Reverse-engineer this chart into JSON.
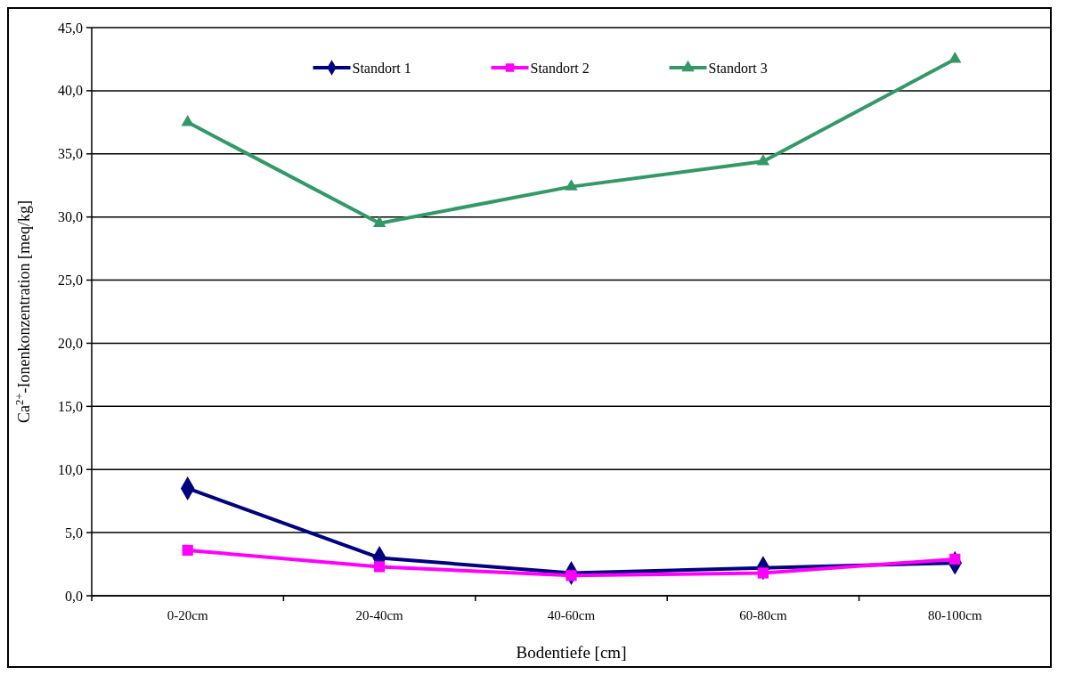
{
  "chart_data": {
    "type": "line",
    "xlabel": "Bodentiefe [cm]",
    "ylabel": "Ca$^{2+}$-Ionenkonzentration [meq/kg]",
    "categories": [
      "0-20cm",
      "20-40cm",
      "40-60cm",
      "60-80cm",
      "80-100cm"
    ],
    "series": [
      {
        "name": "Standort 1",
        "color": "#000080",
        "marker": "diamond",
        "values": [
          8.5,
          3.0,
          1.8,
          2.2,
          2.6
        ]
      },
      {
        "name": "Standort 2",
        "color": "#ff00ff",
        "marker": "square",
        "values": [
          3.6,
          2.3,
          1.6,
          1.8,
          2.9
        ]
      },
      {
        "name": "Standort 3",
        "color": "#339966",
        "marker": "triangle",
        "values": [
          37.5,
          29.5,
          32.4,
          34.4,
          42.5
        ]
      }
    ],
    "ylim": [
      0,
      45
    ],
    "yticks": [
      {
        "value": 0,
        "label": "0,0"
      },
      {
        "value": 5,
        "label": "5,0"
      },
      {
        "value": 10,
        "label": "10,0"
      },
      {
        "value": 15,
        "label": "15,0"
      },
      {
        "value": 20,
        "label": "20,0"
      },
      {
        "value": 25,
        "label": "25,0"
      },
      {
        "value": 30,
        "label": "30,0"
      },
      {
        "value": 35,
        "label": "35,0"
      },
      {
        "value": 40,
        "label": "40,0"
      },
      {
        "value": 45,
        "label": "45,0"
      }
    ],
    "grid": "y",
    "legend": "top",
    "line_style": "solid"
  }
}
